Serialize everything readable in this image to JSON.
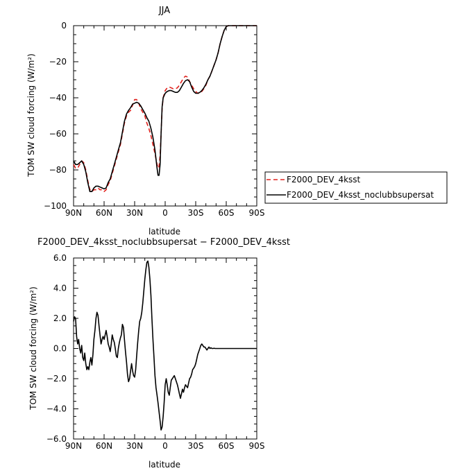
{
  "chart_data": [
    {
      "type": "line",
      "title": "JJA",
      "xlabel": "latitude",
      "ylabel": "TOM SW cloud forcing (W/m²)",
      "xlim": [
        90,
        -90
      ],
      "ylim": [
        -100,
        0
      ],
      "x_tick_values": [
        90,
        60,
        30,
        0,
        -30,
        -60,
        -90
      ],
      "x_tick_labels": [
        "90N",
        "60N",
        "30N",
        "0",
        "30S",
        "60S",
        "90S"
      ],
      "y_tick_values": [
        0,
        -20,
        -40,
        -60,
        -80,
        -100
      ],
      "y_tick_labels": [
        "0",
        "−20",
        "−40",
        "−60",
        "−80",
        "−100"
      ],
      "legend_position": "right",
      "series": [
        {
          "name": "F2000_DEV_4ksst",
          "color": "#e0201b",
          "dash": "dashed",
          "x": [
            90,
            88,
            86,
            84,
            82,
            80,
            78,
            76,
            74,
            72,
            70,
            68,
            66,
            64,
            62,
            60,
            58,
            56,
            54,
            52,
            50,
            48,
            46,
            44,
            42,
            40,
            38,
            36,
            34,
            32,
            30,
            28,
            26,
            24,
            22,
            20,
            18,
            16,
            14,
            12,
            10,
            9,
            8,
            7,
            6,
            5,
            4,
            3,
            2,
            0,
            -2,
            -4,
            -6,
            -8,
            -10,
            -12,
            -14,
            -16,
            -18,
            -20,
            -22,
            -24,
            -26,
            -28,
            -30,
            -32,
            -34,
            -36,
            -38,
            -40,
            -42,
            -44,
            -46,
            -48,
            -50,
            -52,
            -54,
            -56,
            -58,
            -60,
            -62,
            -64,
            -66,
            -68,
            -70,
            -72,
            -75,
            -80,
            -85,
            -90
          ],
          "y": [
            -77,
            -79,
            -79,
            -77,
            -75,
            -76,
            -80,
            -86,
            -91,
            -92,
            -91,
            -91,
            -90,
            -91,
            -91,
            -92,
            -91,
            -88,
            -86,
            -82,
            -78,
            -74,
            -70,
            -66,
            -60,
            -54,
            -50,
            -48,
            -47,
            -44,
            -41,
            -41,
            -43,
            -46,
            -48,
            -50,
            -54,
            -57,
            -61,
            -66,
            -71,
            -74,
            -77,
            -79,
            -78,
            -72,
            -60,
            -46,
            -40,
            -36,
            -34.5,
            -34,
            -34.5,
            -35,
            -35,
            -34.5,
            -33,
            -31,
            -29,
            -28,
            -28.5,
            -31,
            -33,
            -35,
            -36.5,
            -37.5,
            -37.5,
            -36.5,
            -35,
            -33,
            -30,
            -28,
            -25,
            -22,
            -19,
            -15,
            -10,
            -6,
            -2.5,
            -0.5,
            0,
            0,
            0,
            0,
            0,
            0,
            0,
            0,
            0,
            0
          ]
        },
        {
          "name": "F2000_DEV_4ksst_noclubbsupersat",
          "color": "#000000",
          "dash": "solid",
          "x": [
            90,
            88,
            86,
            84,
            82,
            80,
            78,
            76,
            74,
            72,
            70,
            68,
            66,
            64,
            62,
            60,
            58,
            56,
            54,
            52,
            50,
            48,
            46,
            44,
            42,
            40,
            38,
            36,
            34,
            32,
            30,
            28,
            26,
            24,
            22,
            20,
            18,
            16,
            14,
            12,
            10,
            9,
            8,
            7,
            6,
            5,
            4,
            3,
            2,
            0,
            -2,
            -4,
            -6,
            -8,
            -10,
            -12,
            -14,
            -16,
            -18,
            -20,
            -22,
            -24,
            -26,
            -28,
            -30,
            -32,
            -34,
            -36,
            -38,
            -40,
            -42,
            -44,
            -46,
            -48,
            -50,
            -52,
            -54,
            -56,
            -58,
            -60,
            -62,
            -64,
            -66,
            -68,
            -70,
            -72,
            -75,
            -80,
            -85,
            -90
          ],
          "y": [
            -75,
            -77,
            -77,
            -76,
            -75,
            -77,
            -81,
            -87,
            -92,
            -92,
            -90,
            -89,
            -89,
            -89.5,
            -90,
            -90.5,
            -90,
            -87,
            -85,
            -81,
            -77,
            -73,
            -69,
            -65,
            -59,
            -53,
            -49,
            -47,
            -45.5,
            -43.5,
            -43,
            -42.5,
            -43,
            -44.5,
            -46.5,
            -48.5,
            -51,
            -53,
            -57,
            -62,
            -69,
            -74,
            -79,
            -83,
            -83,
            -77,
            -60,
            -45,
            -40,
            -37.5,
            -36.5,
            -36,
            -36,
            -36.5,
            -37,
            -37,
            -36,
            -34,
            -32,
            -30.5,
            -30,
            -31,
            -34,
            -36.5,
            -37.5,
            -37.5,
            -37,
            -36,
            -34.5,
            -32.5,
            -30,
            -28,
            -25,
            -22,
            -19,
            -15,
            -10,
            -6,
            -2.5,
            -0.5,
            0,
            0,
            0,
            0,
            0,
            0,
            0,
            0,
            0,
            0
          ]
        }
      ]
    },
    {
      "type": "line",
      "title": "F2000_DEV_4ksst_noclubbsupersat − F2000_DEV_4ksst",
      "xlabel": "latitude",
      "ylabel": "TOM SW cloud forcing (W/m²)",
      "xlim": [
        90,
        -90
      ],
      "ylim": [
        -6,
        6
      ],
      "x_tick_values": [
        90,
        60,
        30,
        0,
        -30,
        -60,
        -90
      ],
      "x_tick_labels": [
        "90N",
        "60N",
        "30N",
        "0",
        "30S",
        "60S",
        "90S"
      ],
      "y_tick_values": [
        6,
        4,
        2,
        0,
        -2,
        -4,
        -6
      ],
      "y_tick_labels": [
        "6.0",
        "4.0",
        "2.0",
        "0.0",
        "−2.0",
        "−4.0",
        "−6.0"
      ],
      "series": [
        {
          "color": "#000000",
          "dash": "solid",
          "x": [
            90,
            89,
            88,
            87,
            86,
            85,
            84,
            83,
            82,
            81,
            80,
            79,
            78,
            77,
            76,
            75,
            74,
            73,
            72,
            71,
            70,
            69,
            68,
            67,
            66,
            65,
            64,
            63,
            62,
            61,
            60,
            59,
            58,
            57,
            56,
            55,
            54,
            53,
            52,
            51,
            50,
            49,
            48,
            47,
            46,
            45,
            44,
            43,
            42,
            41,
            40,
            39,
            38,
            37,
            36,
            35,
            34,
            33,
            32,
            31,
            30,
            29,
            28,
            27,
            26,
            25,
            24,
            23,
            22,
            21,
            20,
            19,
            18,
            17,
            16,
            15,
            14,
            13,
            12,
            11,
            10,
            9,
            8,
            7,
            6,
            5,
            4,
            3,
            2,
            1,
            0,
            -1,
            -2,
            -3,
            -4,
            -5,
            -6,
            -7,
            -8,
            -9,
            -10,
            -11,
            -12,
            -13,
            -14,
            -15,
            -16,
            -17,
            -18,
            -19,
            -20,
            -21,
            -22,
            -23,
            -24,
            -25,
            -26,
            -27,
            -28,
            -29,
            -30,
            -31,
            -32,
            -33,
            -34,
            -35,
            -36,
            -37,
            -38,
            -39,
            -40,
            -41,
            -42,
            -43,
            -44,
            -45,
            -46,
            -47,
            -48,
            -49,
            -50,
            -52,
            -54,
            -56,
            -58,
            -60,
            -65,
            -70,
            -75,
            -80,
            -85,
            -90
          ],
          "y": [
            1.8,
            2.1,
            2.0,
            0.8,
            0.3,
            0.6,
            0.0,
            -0.3,
            0.2,
            -0.6,
            -0.8,
            -0.3,
            -1.0,
            -1.4,
            -1.2,
            -1.4,
            -0.9,
            -0.6,
            -1.1,
            -0.4,
            0.6,
            1.2,
            2.0,
            2.4,
            2.2,
            1.5,
            0.9,
            0.3,
            0.6,
            0.8,
            0.6,
            0.9,
            1.2,
            0.8,
            0.3,
            0.1,
            -0.2,
            0.3,
            0.9,
            0.6,
            0.4,
            0.0,
            -0.5,
            -0.6,
            0.0,
            0.4,
            0.7,
            0.9,
            1.6,
            1.4,
            0.6,
            -0.2,
            -0.9,
            -1.7,
            -2.2,
            -2.0,
            -1.5,
            -1.0,
            -1.5,
            -1.8,
            -1.9,
            -1.4,
            -0.5,
            0.4,
            1.2,
            1.8,
            2.0,
            2.4,
            3.0,
            3.8,
            4.6,
            5.2,
            5.7,
            5.8,
            5.4,
            4.6,
            3.5,
            2.0,
            0.6,
            -0.6,
            -1.8,
            -2.6,
            -3.1,
            -3.6,
            -4.2,
            -4.8,
            -5.4,
            -5.2,
            -4.5,
            -3.6,
            -2.4,
            -2.0,
            -2.4,
            -2.9,
            -3.1,
            -2.6,
            -2.1,
            -2.0,
            -1.9,
            -1.8,
            -2.0,
            -2.2,
            -2.4,
            -2.7,
            -3.0,
            -3.3,
            -3.0,
            -2.7,
            -2.9,
            -2.6,
            -2.4,
            -2.5,
            -2.6,
            -2.3,
            -2.0,
            -1.9,
            -1.7,
            -1.4,
            -1.3,
            -1.2,
            -1.0,
            -0.7,
            -0.4,
            -0.2,
            0.0,
            0.2,
            0.3,
            0.2,
            0.1,
            0.1,
            0.0,
            -0.1,
            0.0,
            0.1,
            0.0,
            0.05,
            0.0,
            0.0,
            0.02,
            0.0,
            0.0,
            0.0,
            0.0,
            0.0,
            0.0,
            0.0,
            0.0,
            0.0,
            0.0,
            0.0,
            0.0,
            0.0
          ]
        }
      ]
    }
  ]
}
